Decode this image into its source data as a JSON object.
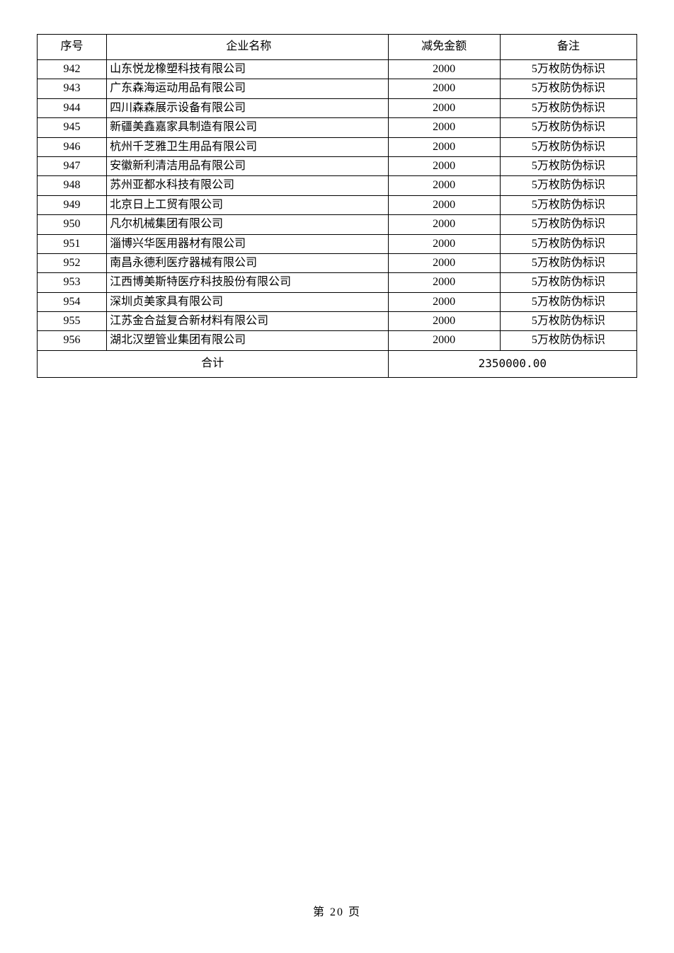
{
  "table": {
    "headers": {
      "seq": "序号",
      "name": "企业名称",
      "amount": "减免金额",
      "remark": "备注"
    },
    "rows": [
      {
        "seq": "942",
        "name": "山东悦龙橡塑科技有限公司",
        "amount": "2000",
        "remark": "5万枚防伪标识"
      },
      {
        "seq": "943",
        "name": "广东森海运动用品有限公司",
        "amount": "2000",
        "remark": "5万枚防伪标识"
      },
      {
        "seq": "944",
        "name": "四川森森展示设备有限公司",
        "amount": "2000",
        "remark": "5万枚防伪标识"
      },
      {
        "seq": "945",
        "name": "新疆美鑫嘉家具制造有限公司",
        "amount": "2000",
        "remark": "5万枚防伪标识"
      },
      {
        "seq": "946",
        "name": "杭州千芝雅卫生用品有限公司",
        "amount": "2000",
        "remark": "5万枚防伪标识"
      },
      {
        "seq": "947",
        "name": "安徽新利清洁用品有限公司",
        "amount": "2000",
        "remark": "5万枚防伪标识"
      },
      {
        "seq": "948",
        "name": "苏州亚都水科技有限公司",
        "amount": "2000",
        "remark": "5万枚防伪标识"
      },
      {
        "seq": "949",
        "name": "北京日上工贸有限公司",
        "amount": "2000",
        "remark": "5万枚防伪标识"
      },
      {
        "seq": "950",
        "name": "凡尔机械集团有限公司",
        "amount": "2000",
        "remark": "5万枚防伪标识"
      },
      {
        "seq": "951",
        "name": "淄博兴华医用器材有限公司",
        "amount": "2000",
        "remark": "5万枚防伪标识"
      },
      {
        "seq": "952",
        "name": "南昌永德利医疗器械有限公司",
        "amount": "2000",
        "remark": "5万枚防伪标识"
      },
      {
        "seq": "953",
        "name": "江西博美斯特医疗科技股份有限公司",
        "amount": "2000",
        "remark": "5万枚防伪标识"
      },
      {
        "seq": "954",
        "name": "深圳贞美家具有限公司",
        "amount": "2000",
        "remark": "5万枚防伪标识"
      },
      {
        "seq": "955",
        "name": "江苏金合益复合新材料有限公司",
        "amount": "2000",
        "remark": "5万枚防伪标识"
      },
      {
        "seq": "956",
        "name": "湖北汉塑管业集团有限公司",
        "amount": "2000",
        "remark": "5万枚防伪标识"
      }
    ],
    "total": {
      "label": "合计",
      "value": "2350000.00"
    }
  },
  "pageNumber": "第 20 页"
}
